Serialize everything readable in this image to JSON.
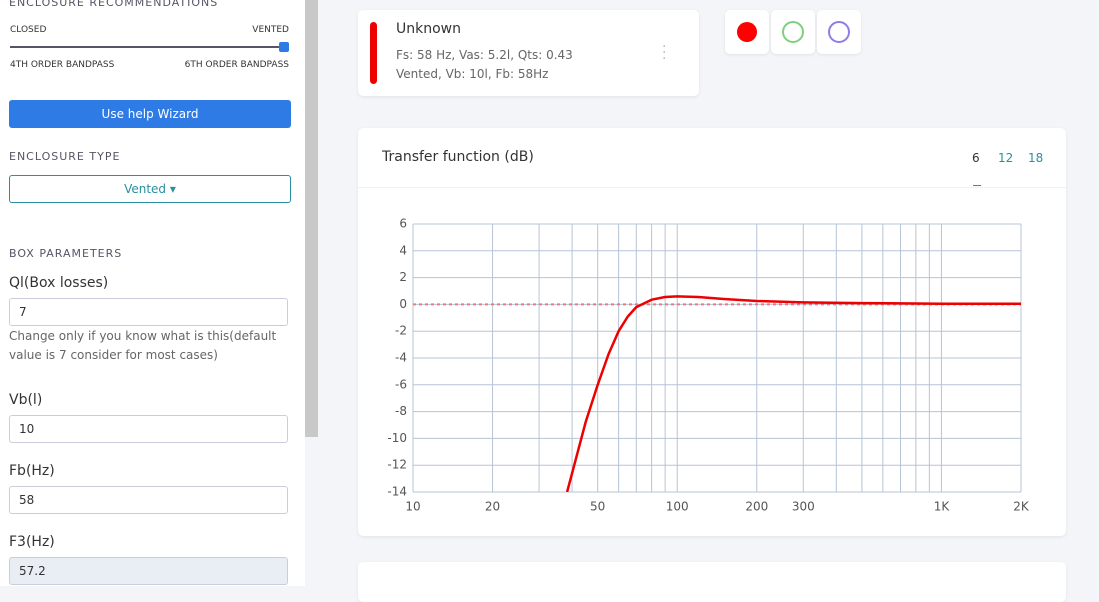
{
  "sidebar": {
    "recommendations_title": "ENCLOSURE RECOMMENDATIONS",
    "slider_left_top": "CLOSED",
    "slider_right_top": "VENTED",
    "slider_left_bottom": "4TH ORDER BANDPASS",
    "slider_right_bottom": "6TH ORDER BANDPASS",
    "wizard_button": "Use help Wizard",
    "enclosure_type_title": "ENCLOSURE TYPE",
    "enclosure_type_value": "Vented",
    "box_parameters_title": "BOX PARAMETERS",
    "fields": [
      {
        "label": "Ql(Box losses)",
        "value": "7",
        "help": "Change only if you know what is this(default value is 7 consider for most cases)"
      },
      {
        "label": "Vb(l)",
        "value": "10"
      },
      {
        "label": "Fb(Hz)",
        "value": "58"
      },
      {
        "label": "F3(Hz)",
        "value": "57.2"
      }
    ]
  },
  "driver_card": {
    "name": "Unknown",
    "line1": "Fs: 58 Hz, Vas: 5.2l, Qts: 0.43",
    "line2": "Vented, Vb: 10l, Fb: 58Hz"
  },
  "tabs": [
    "6",
    "12",
    "18"
  ],
  "chart_data": {
    "type": "line",
    "title": "Transfer function (dB)",
    "xscale": "log",
    "grid": true,
    "xlim": [
      10,
      2000
    ],
    "xticks": [
      10,
      20,
      50,
      100,
      200,
      300,
      {
        "value": 1000,
        "label": "1K"
      },
      {
        "value": 2000,
        "label": "2K"
      }
    ],
    "xminor": [
      30,
      40,
      60,
      70,
      80,
      90,
      400,
      500,
      600,
      700,
      800,
      900
    ],
    "ylim": [
      -14,
      6
    ],
    "yticks": [
      -14,
      -12,
      -10,
      -8,
      -6,
      -4,
      -2,
      0,
      2,
      4,
      6
    ],
    "series": [
      {
        "color": "#ee0000",
        "style": "solid",
        "x": [
          38.3,
          40,
          45,
          50,
          55,
          60,
          65,
          70,
          80,
          90,
          100,
          120,
          150,
          200,
          300,
          500,
          1000,
          2000
        ],
        "values": [
          -14,
          -12.6,
          -8.8,
          -6,
          -3.7,
          -2,
          -0.9,
          -0.2,
          0.35,
          0.55,
          0.6,
          0.55,
          0.4,
          0.25,
          0.15,
          0.1,
          0.05,
          0.05
        ]
      },
      {
        "color": "#f07878",
        "style": "dotted",
        "x": [
          10,
          2000
        ],
        "values": [
          0,
          0
        ]
      }
    ]
  }
}
